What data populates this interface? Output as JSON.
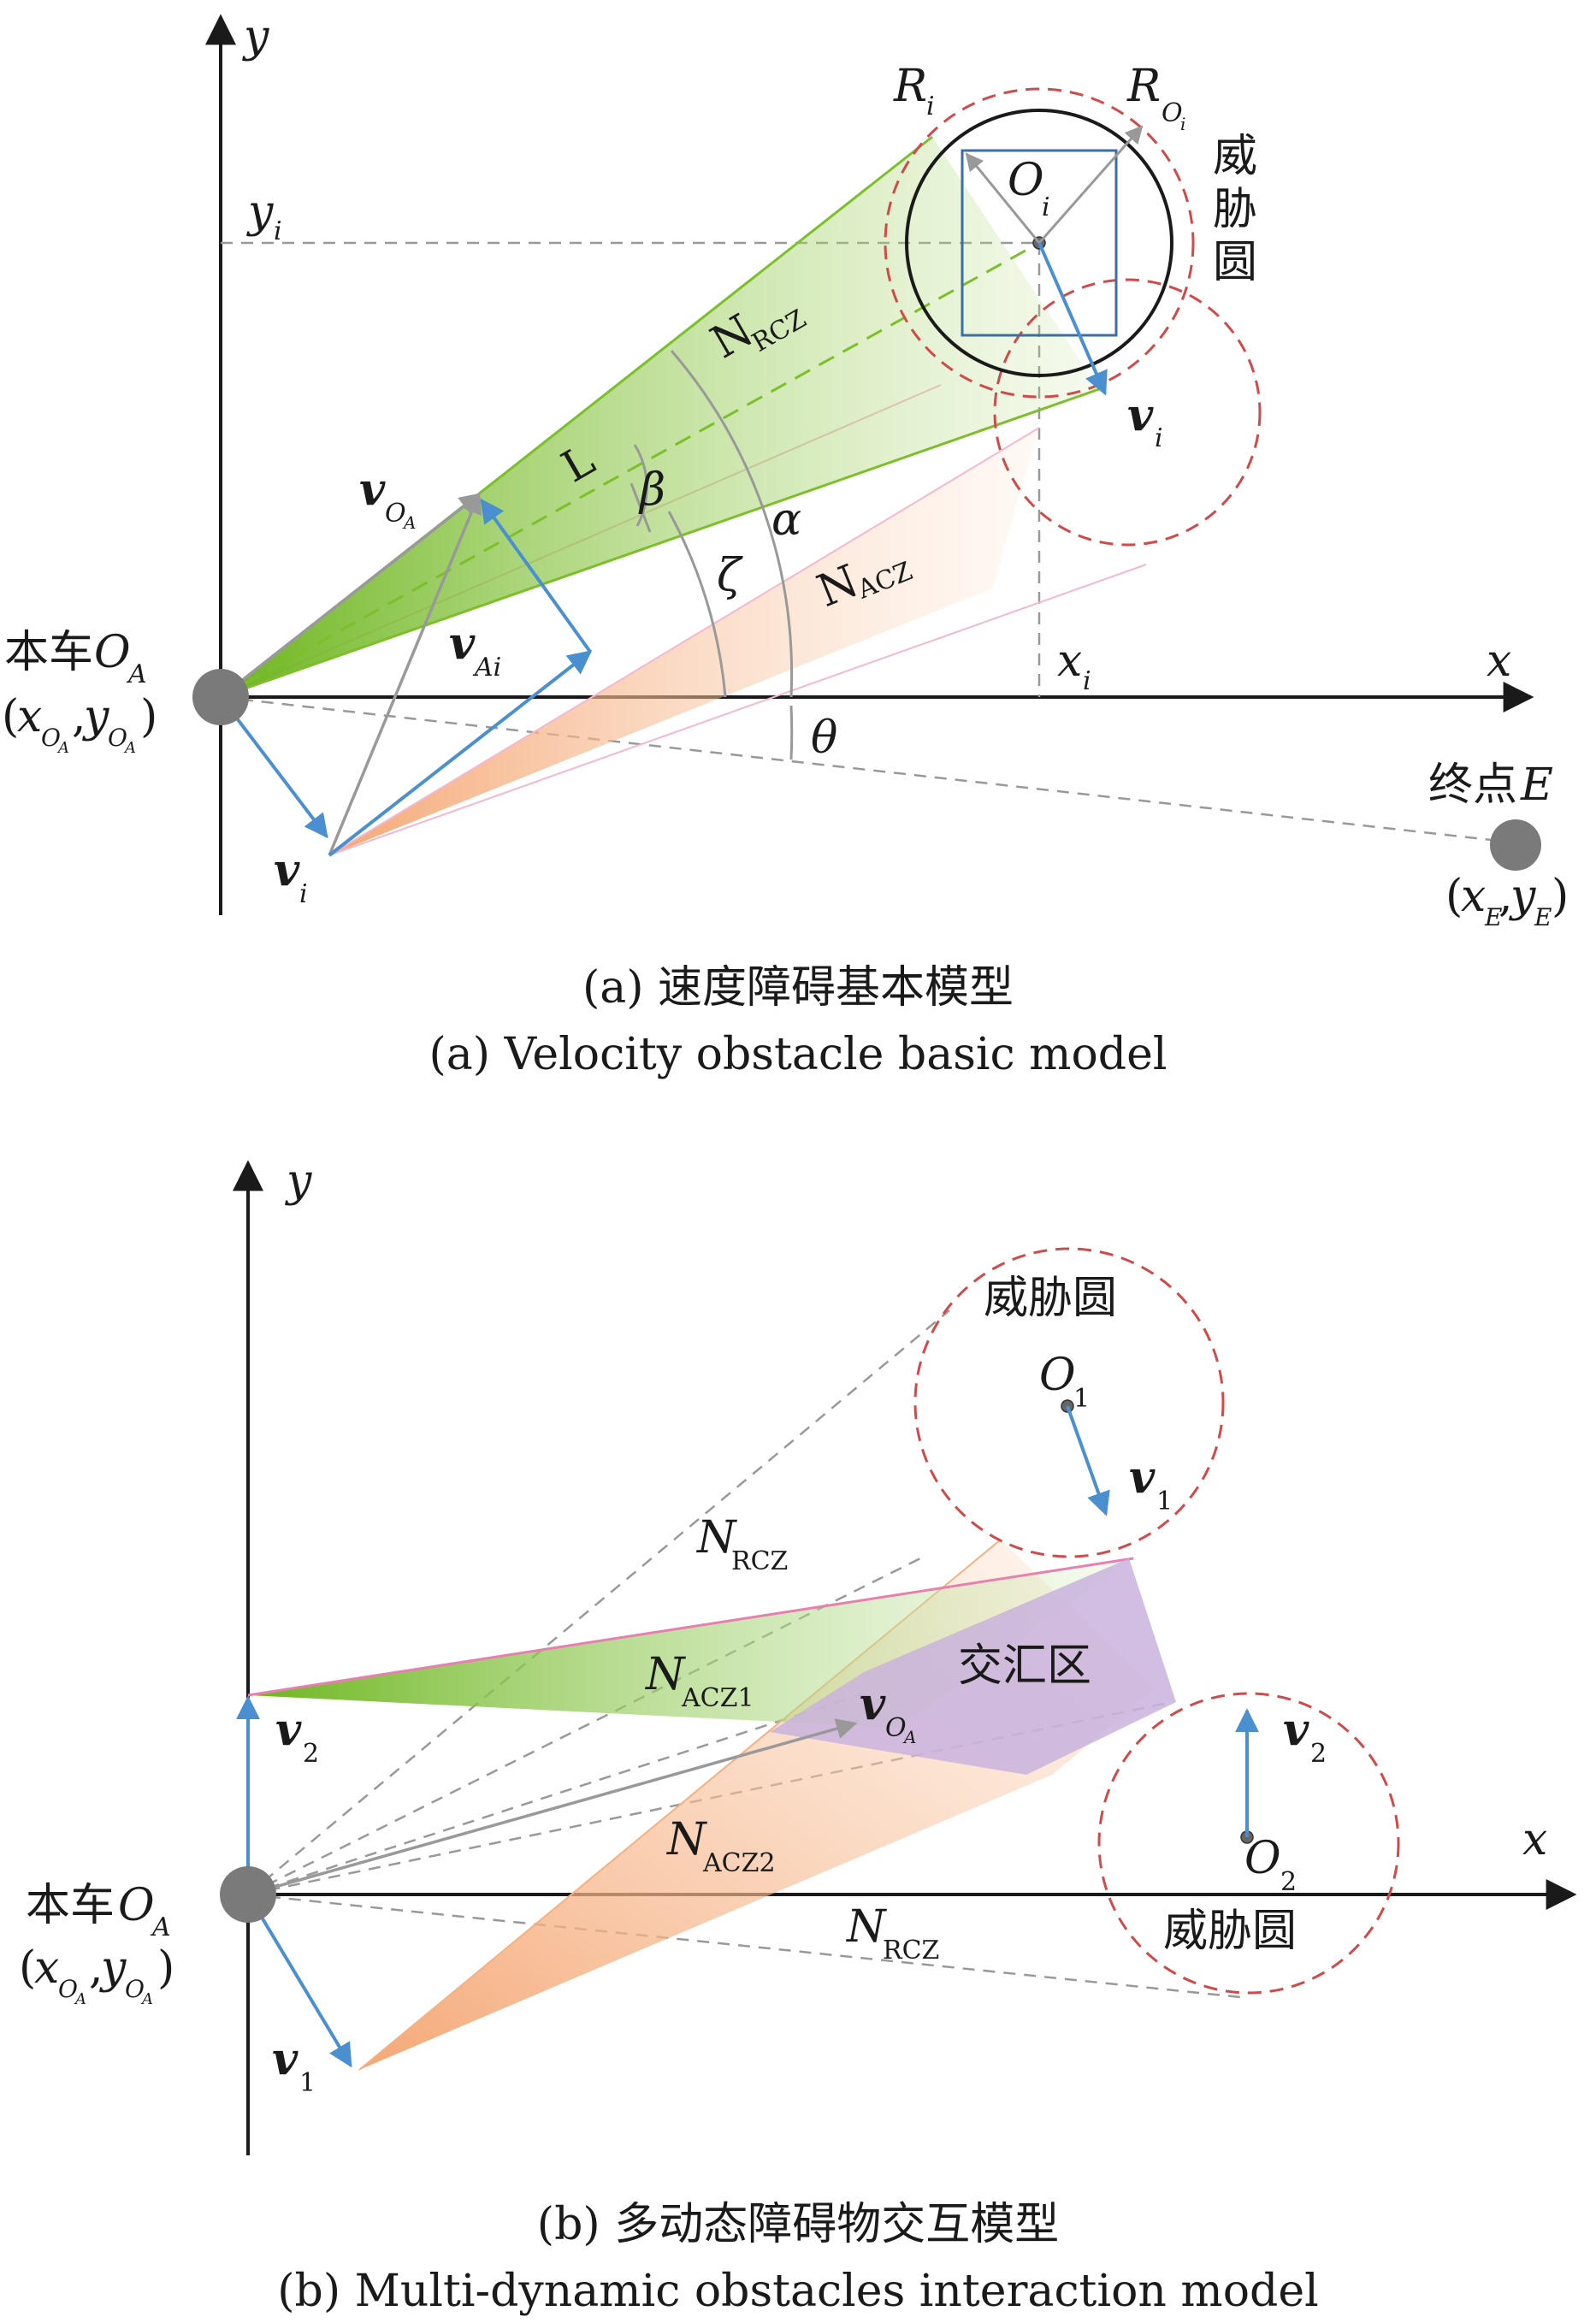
{
  "panel_a": {
    "axis_y": "y",
    "axis_x": "x",
    "y_i": "y",
    "y_i_sub": "i",
    "x_i": "x",
    "x_i_sub": "i",
    "R_i": "R",
    "R_i_sub": "i",
    "R_Oi": "R",
    "R_Oi_sub": "O",
    "R_Oi_subsub": "i",
    "O_i": "O",
    "O_i_sub": "i",
    "threat_circle_label": [
      "威",
      "胁",
      "圆"
    ],
    "v_i_right": "v",
    "v_i_right_sub": "i",
    "N_RCZ": "N",
    "N_RCZ_sub": "RCZ",
    "N_ACZ": "N",
    "N_ACZ_sub": "ACZ",
    "L": "L",
    "beta": "β",
    "alpha": "α",
    "zeta": "ζ",
    "theta": "θ",
    "v_OA": "v",
    "v_OA_sub": "O",
    "v_OA_subsub": "A",
    "v_Ai": "v",
    "v_Ai_sub": "Ai",
    "v_i_bottom": "v",
    "v_i_bottom_sub": "i",
    "ego_label": "本车",
    "ego_O": "O",
    "ego_O_sub": "A",
    "ego_coord_open": "(",
    "ego_coord_x": "x",
    "ego_coord_comma": ",",
    "ego_coord_y": "y",
    "ego_coord_close": ")",
    "ego_coord_sub": "O",
    "ego_coord_subsub": "A",
    "end_label": "终点",
    "end_E": "E",
    "end_coord_open": "(",
    "end_coord_x": "x",
    "end_coord_xsub": "E",
    "end_coord_comma": ",",
    "end_coord_y": "y",
    "end_coord_ysub": "E",
    "end_coord_close": ")",
    "caption_cn": "(a) 速度障碍基本模型",
    "caption_en": "(a) Velocity obstacle basic model"
  },
  "panel_b": {
    "axis_y": "y",
    "axis_x": "x",
    "threat_circle_top": "威胁圆",
    "threat_circle_bottom": "威胁圆",
    "O1": "O",
    "O1_sub": "1",
    "O2": "O",
    "O2_sub": "2",
    "v1_right": "v",
    "v1_right_sub": "1",
    "v2_right": "v",
    "v2_right_sub": "2",
    "N_RCZ_top": "N",
    "N_RCZ_top_sub": "RCZ",
    "N_RCZ_bottom": "N",
    "N_RCZ_bottom_sub": "RCZ",
    "N_ACZ1": "N",
    "N_ACZ1_sub": "ACZ1",
    "N_ACZ2": "N",
    "N_ACZ2_sub": "ACZ2",
    "intersection": "交汇区",
    "v_OA": "v",
    "v_OA_sub": "O",
    "v_OA_subsub": "A",
    "v2_left": "v",
    "v2_left_sub": "2",
    "v1_left": "v",
    "v1_left_sub": "1",
    "ego_label": "本车",
    "ego_O": "O",
    "ego_O_sub": "A",
    "ego_coord_open": "(",
    "ego_coord_x": "x",
    "ego_coord_comma": ",",
    "ego_coord_y": "y",
    "ego_coord_close": ")",
    "ego_coord_sub": "O",
    "ego_coord_subsub": "A",
    "caption_cn": "(b) 多动态障碍物交互模型",
    "caption_en": "(b) Multi-dynamic obstacles interaction model"
  },
  "colors": {
    "axis": "#1a1a1a",
    "green": "#7cbf2a",
    "orange": "#f4b183",
    "pink": "#f0a9c8",
    "purple": "#c9b3dd",
    "blue_arrow": "#4a90d0",
    "gray_arrow": "#999999",
    "red_dashed": "#d04a4a",
    "rect_blue": "#3a6ea8"
  }
}
